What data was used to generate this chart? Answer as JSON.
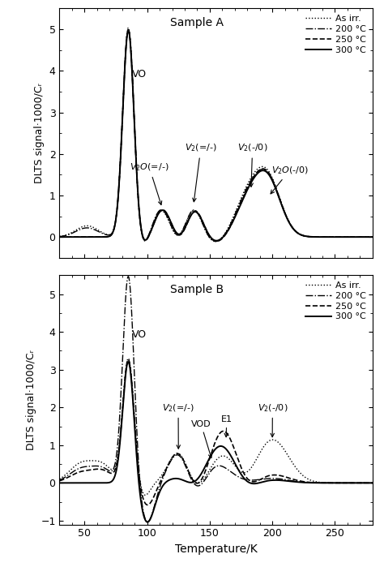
{
  "title_A": "Sample A",
  "title_B": "Sample B",
  "xlabel": "Temperature/K",
  "ylabel": "DLTS signal·1000/Cᵣ",
  "xlim": [
    30,
    280
  ],
  "ylim_A": [
    -0.5,
    5.5
  ],
  "ylim_B": [
    -1.1,
    5.5
  ],
  "yticks_A": [
    0,
    1,
    2,
    3,
    4,
    5
  ],
  "yticks_B": [
    -1,
    0,
    1,
    2,
    3,
    4,
    5
  ],
  "legend_entries": [
    "As irr.",
    "200 °C",
    "250 °C",
    "300 °C"
  ],
  "background_color": "#ffffff"
}
